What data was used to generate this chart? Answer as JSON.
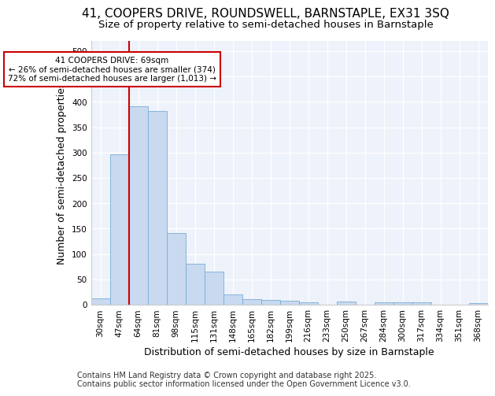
{
  "title_line1": "41, COOPERS DRIVE, ROUNDSWELL, BARNSTAPLE, EX31 3SQ",
  "title_line2": "Size of property relative to semi-detached houses in Barnstaple",
  "xlabel": "Distribution of semi-detached houses by size in Barnstaple",
  "ylabel": "Number of semi-detached properties",
  "categories": [
    "30sqm",
    "47sqm",
    "64sqm",
    "81sqm",
    "98sqm",
    "115sqm",
    "131sqm",
    "148sqm",
    "165sqm",
    "182sqm",
    "199sqm",
    "216sqm",
    "233sqm",
    "250sqm",
    "267sqm",
    "284sqm",
    "300sqm",
    "317sqm",
    "334sqm",
    "351sqm",
    "368sqm"
  ],
  "values": [
    13,
    296,
    391,
    382,
    141,
    80,
    65,
    20,
    11,
    9,
    7,
    5,
    0,
    6,
    0,
    4,
    5,
    4,
    0,
    0,
    3
  ],
  "bar_color": "#c8d9f0",
  "bar_edge_color": "#7aadd4",
  "vline_color": "#cc0000",
  "annotation_text": "41 COOPERS DRIVE: 69sqm\n← 26% of semi-detached houses are smaller (374)\n72% of semi-detached houses are larger (1,013) →",
  "annotation_box_color": "#ffffff",
  "annotation_edge_color": "#cc0000",
  "ylim": [
    0,
    520
  ],
  "yticks": [
    0,
    50,
    100,
    150,
    200,
    250,
    300,
    350,
    400,
    450,
    500
  ],
  "background_color": "#eef2fa",
  "footer_text": "Contains HM Land Registry data © Crown copyright and database right 2025.\nContains public sector information licensed under the Open Government Licence v3.0.",
  "title_fontsize": 11,
  "subtitle_fontsize": 9.5,
  "axis_label_fontsize": 9,
  "tick_fontsize": 7.5,
  "footer_fontsize": 7
}
